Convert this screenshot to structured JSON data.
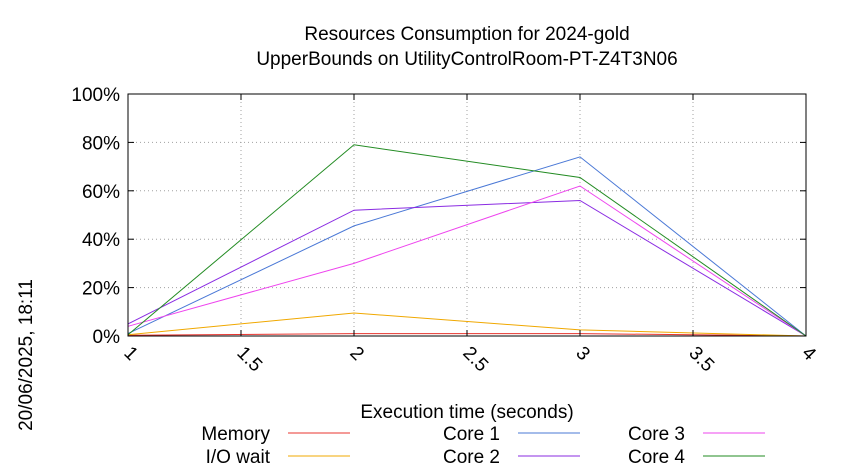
{
  "chart_data": {
    "type": "line",
    "title": "Resources Consumption for 2024-gold",
    "subtitle": "UpperBounds on UtilityControlRoom-PT-Z4T3N06",
    "xlabel": "Execution time (seconds)",
    "ylabel": "",
    "side_label": "20/06/2025, 18:11",
    "xlim": [
      1,
      4
    ],
    "ylim": [
      0,
      100
    ],
    "x_ticks": [
      {
        "value": 1,
        "label": "1"
      },
      {
        "value": 1.5,
        "label": "1.5"
      },
      {
        "value": 2,
        "label": "2"
      },
      {
        "value": 2.5,
        "label": "2.5"
      },
      {
        "value": 3,
        "label": "3"
      },
      {
        "value": 3.5,
        "label": "3.5"
      },
      {
        "value": 4,
        "label": "4"
      }
    ],
    "y_ticks": [
      {
        "value": 0,
        "label": "0%"
      },
      {
        "value": 20,
        "label": "20%"
      },
      {
        "value": 40,
        "label": "40%"
      },
      {
        "value": 60,
        "label": "60%"
      },
      {
        "value": 80,
        "label": "80%"
      },
      {
        "value": 100,
        "label": "100%"
      }
    ],
    "grid": true,
    "legend_position": "bottom",
    "series": [
      {
        "name": "Memory",
        "color": "#e8352f",
        "x": [
          1,
          2,
          3,
          4
        ],
        "y": [
          0.3,
          1,
          1,
          0
        ]
      },
      {
        "name": "I/O wait",
        "color": "#f0a800",
        "x": [
          1,
          2,
          3,
          4
        ],
        "y": [
          0.5,
          9.5,
          2.5,
          0
        ]
      },
      {
        "name": "Core 1",
        "color": "#4a78d6",
        "x": [
          1,
          2,
          3,
          4
        ],
        "y": [
          1,
          45.5,
          74,
          0
        ]
      },
      {
        "name": "Core 2",
        "color": "#8a2be2",
        "x": [
          1,
          2,
          3,
          4
        ],
        "y": [
          5,
          52,
          56,
          0
        ]
      },
      {
        "name": "Core 3",
        "color": "#ee44ee",
        "x": [
          1,
          2,
          3,
          4
        ],
        "y": [
          4,
          30,
          62,
          0
        ]
      },
      {
        "name": "Core 4",
        "color": "#228b22",
        "x": [
          1,
          2,
          3,
          4
        ],
        "y": [
          0.5,
          79,
          65.5,
          0
        ]
      }
    ]
  }
}
